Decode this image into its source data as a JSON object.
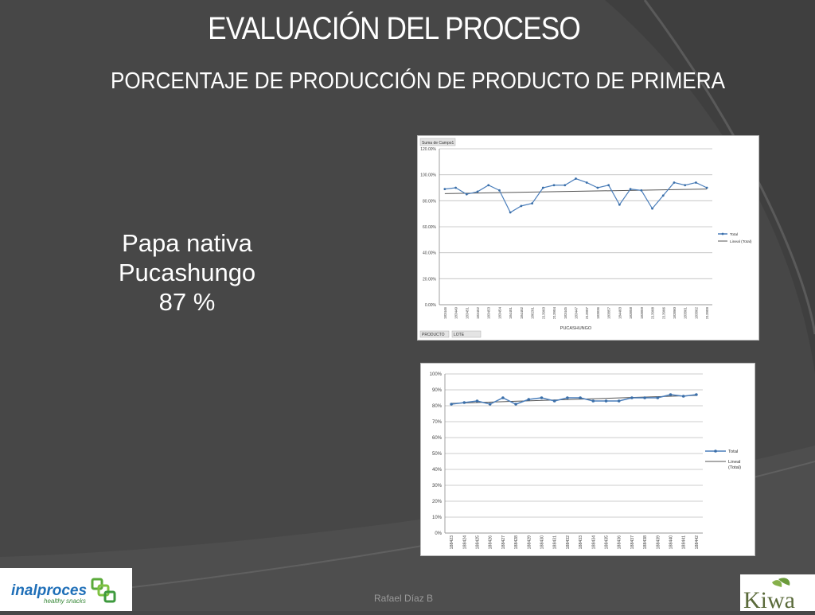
{
  "slide": {
    "title": "EVALUACIÓN DEL PROCESO",
    "subtitle": "PORCENTAJE DE PRODUCCIÓN DE PRODUCTO DE PRIMERA",
    "product_line1": "Papa nativa",
    "product_line2": "Pucashungo",
    "product_value": "87 %",
    "author": "Rafael Díaz B",
    "logo_left_text": "inalproces",
    "logo_left_sub": "healthy snacks",
    "logo_right_text": "Kiwa"
  },
  "chart_data": [
    {
      "type": "line",
      "field_button": "Suma de Campo1",
      "filter_buttons": [
        "PRODUCTO",
        "LOTE"
      ],
      "xlabel": "PUCASHUNGO",
      "ylabel": "",
      "ylim": [
        0,
        120
      ],
      "yticks": [
        "0.00%",
        "20.00%",
        "40.00%",
        "60.00%",
        "80.00%",
        "100.00%",
        "120.00%"
      ],
      "categories": [
        "183446",
        "183449",
        "183451",
        "183452",
        "183453",
        "183454",
        "184401",
        "184402",
        "186201",
        "213903",
        "213904",
        "183445",
        "183447",
        "213907",
        "183836",
        "183857",
        "184403",
        "183858",
        "183859",
        "213908",
        "213906",
        "183860",
        "183861",
        "183862",
        "213909"
      ],
      "series": [
        {
          "name": "Total",
          "values": [
            89,
            90,
            85,
            87,
            92,
            88,
            71,
            76,
            78,
            90,
            92,
            92,
            97,
            94,
            90,
            92,
            77,
            89,
            88,
            74,
            84,
            94,
            92,
            94,
            90
          ]
        },
        {
          "name": "Lineal (Total)",
          "trend": [
            85.5,
            89
          ]
        }
      ],
      "legend": "right"
    },
    {
      "type": "line",
      "xlabel": "",
      "ylabel": "",
      "ylim": [
        0,
        100
      ],
      "yticks": [
        "0%",
        "10%",
        "20%",
        "30%",
        "40%",
        "50%",
        "60%",
        "70%",
        "80%",
        "90%",
        "100%"
      ],
      "categories": [
        "188423",
        "188424",
        "188425",
        "188426",
        "188427",
        "188428",
        "188429",
        "188430",
        "188431",
        "188432",
        "188433",
        "188434",
        "188435",
        "188436",
        "188437",
        "188438",
        "188439",
        "188440",
        "188441",
        "188442"
      ],
      "series": [
        {
          "name": "Total",
          "values": [
            81,
            82,
            83,
            81,
            85,
            81,
            84,
            85,
            83,
            85,
            85,
            83,
            83,
            83,
            85,
            85,
            85,
            87,
            86,
            87
          ]
        },
        {
          "name": "Lineal (Total)",
          "trend": [
            81.5,
            86.5
          ]
        }
      ],
      "legend": "right"
    }
  ]
}
